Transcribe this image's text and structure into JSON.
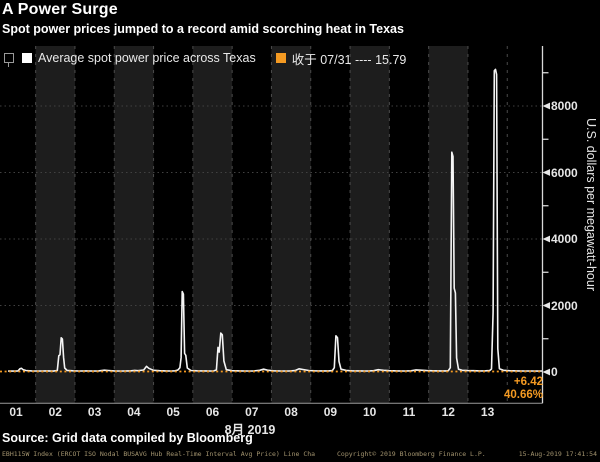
{
  "header": {
    "title": "A Power Surge",
    "subtitle": "Spot power prices jumped to a record amid scorching heat in Texas"
  },
  "legend": {
    "series_label": "Average spot power price across Texas",
    "close_label": "收于 07/31 ---- 15.79"
  },
  "chart_data": {
    "type": "line",
    "title": "A Power Surge",
    "subtitle": "Spot power prices jumped to a record amid scorching heat in Texas",
    "x_unit": "day of August 2019",
    "x_ticks": [
      "01",
      "02",
      "03",
      "04",
      "05",
      "06",
      "07",
      "08",
      "09",
      "10",
      "11",
      "12",
      "13"
    ],
    "x_axis_label": "8月 2019",
    "y_ticks": [
      "0",
      "2000",
      "4000",
      "6000",
      "8000"
    ],
    "y_tick_values": [
      0,
      2000,
      4000,
      6000,
      8000
    ],
    "y_minor_tick_values": [
      1000,
      3000,
      5000,
      7000,
      9000
    ],
    "grid_values": [
      2000,
      4000,
      6000,
      8000
    ],
    "ylabel": "U.S. dollars per megawatt-hour",
    "ylim": [
      -950,
      9800
    ],
    "xlim": [
      0.8,
      14.4
    ],
    "legend_position": "top",
    "grid": "horizontal-dotted, vertical day dividers dashed, alternating day bands",
    "series": [
      {
        "name": "Average spot power price across Texas",
        "color": "#f5f5f5",
        "points": [
          [
            0.8,
            28
          ],
          [
            0.95,
            26
          ],
          [
            1.05,
            34
          ],
          [
            1.1,
            95
          ],
          [
            1.14,
            110
          ],
          [
            1.18,
            70
          ],
          [
            1.25,
            45
          ],
          [
            1.4,
            32
          ],
          [
            1.6,
            30
          ],
          [
            1.8,
            33
          ],
          [
            1.95,
            28
          ],
          [
            2.05,
            45
          ],
          [
            2.09,
            490
          ],
          [
            2.12,
            520
          ],
          [
            2.15,
            1030
          ],
          [
            2.18,
            990
          ],
          [
            2.21,
            430
          ],
          [
            2.24,
            120
          ],
          [
            2.3,
            48
          ],
          [
            2.45,
            35
          ],
          [
            2.6,
            30
          ],
          [
            2.8,
            32
          ],
          [
            2.95,
            30
          ],
          [
            3.1,
            32
          ],
          [
            3.25,
            55
          ],
          [
            3.35,
            45
          ],
          [
            3.5,
            34
          ],
          [
            3.7,
            30
          ],
          [
            3.9,
            34
          ],
          [
            4.02,
            48
          ],
          [
            4.1,
            40
          ],
          [
            4.25,
            60
          ],
          [
            4.32,
            170
          ],
          [
            4.38,
            110
          ],
          [
            4.5,
            50
          ],
          [
            4.65,
            38
          ],
          [
            4.8,
            32
          ],
          [
            4.95,
            30
          ],
          [
            5.05,
            36
          ],
          [
            5.12,
            60
          ],
          [
            5.17,
            130
          ],
          [
            5.2,
            430
          ],
          [
            5.23,
            2420
          ],
          [
            5.26,
            2340
          ],
          [
            5.29,
            560
          ],
          [
            5.32,
            500
          ],
          [
            5.36,
            120
          ],
          [
            5.45,
            45
          ],
          [
            5.6,
            36
          ],
          [
            5.8,
            32
          ],
          [
            5.95,
            30
          ],
          [
            6.03,
            34
          ],
          [
            6.1,
            60
          ],
          [
            6.14,
            740
          ],
          [
            6.17,
            600
          ],
          [
            6.21,
            1170
          ],
          [
            6.25,
            1120
          ],
          [
            6.29,
            330
          ],
          [
            6.35,
            70
          ],
          [
            6.5,
            40
          ],
          [
            6.7,
            32
          ],
          [
            6.9,
            30
          ],
          [
            7.05,
            32
          ],
          [
            7.2,
            50
          ],
          [
            7.3,
            85
          ],
          [
            7.4,
            55
          ],
          [
            7.55,
            36
          ],
          [
            7.75,
            30
          ],
          [
            7.95,
            30
          ],
          [
            8.1,
            42
          ],
          [
            8.2,
            95
          ],
          [
            8.3,
            75
          ],
          [
            8.45,
            45
          ],
          [
            8.6,
            36
          ],
          [
            8.8,
            32
          ],
          [
            8.95,
            32
          ],
          [
            9.05,
            42
          ],
          [
            9.1,
            130
          ],
          [
            9.14,
            1090
          ],
          [
            9.18,
            1030
          ],
          [
            9.22,
            320
          ],
          [
            9.27,
            85
          ],
          [
            9.4,
            48
          ],
          [
            9.55,
            36
          ],
          [
            9.75,
            32
          ],
          [
            9.95,
            30
          ],
          [
            10.1,
            40
          ],
          [
            10.22,
            70
          ],
          [
            10.35,
            50
          ],
          [
            10.5,
            38
          ],
          [
            10.7,
            32
          ],
          [
            10.9,
            30
          ],
          [
            11.05,
            36
          ],
          [
            11.18,
            62
          ],
          [
            11.3,
            55
          ],
          [
            11.45,
            42
          ],
          [
            11.6,
            36
          ],
          [
            11.8,
            34
          ],
          [
            11.95,
            34
          ],
          [
            12.0,
            40
          ],
          [
            12.05,
            130
          ],
          [
            12.09,
            6610
          ],
          [
            12.12,
            6480
          ],
          [
            12.15,
            2520
          ],
          [
            12.18,
            2380
          ],
          [
            12.21,
            420
          ],
          [
            12.26,
            85
          ],
          [
            12.35,
            50
          ],
          [
            12.5,
            42
          ],
          [
            12.65,
            38
          ],
          [
            12.8,
            34
          ],
          [
            12.95,
            36
          ],
          [
            13.05,
            42
          ],
          [
            13.1,
            90
          ],
          [
            13.14,
            1800
          ],
          [
            13.17,
            9060
          ],
          [
            13.2,
            9100
          ],
          [
            13.23,
            8950
          ],
          [
            13.26,
            700
          ],
          [
            13.3,
            100
          ],
          [
            13.4,
            50
          ],
          [
            13.55,
            38
          ],
          [
            13.75,
            32
          ],
          [
            13.95,
            30
          ],
          [
            14.15,
            30
          ],
          [
            14.3,
            28
          ],
          [
            14.4,
            30
          ]
        ]
      }
    ],
    "reference_line": {
      "label": "收于 07/31",
      "value": 15.79,
      "style": "dotted",
      "color": "#f49a22",
      "change": "+6.42",
      "change_pct": "40.66%"
    }
  },
  "footer": {
    "source": "Source: Grid data compiled by Bloomberg",
    "meta_left": "EBH115W Index (ERCOT ISO Nodal BUSAVG Hub Real-Time Interval Avg Price) Line Cha",
    "meta_copyright": "Copyright© 2019 Bloomberg Finance L.P.",
    "meta_timestamp": "15-Aug-2019 17:41:54"
  },
  "palette": {
    "background": "#000000",
    "band": "#1d1d1d",
    "accent_orange": "#f49a22",
    "line_white": "#f5f5f5",
    "grid": "#414141",
    "day_divider": "#4b4b4b",
    "axis": "#d9d9d9",
    "text": "#e8e8e8",
    "muted_text": "#a3946f"
  }
}
